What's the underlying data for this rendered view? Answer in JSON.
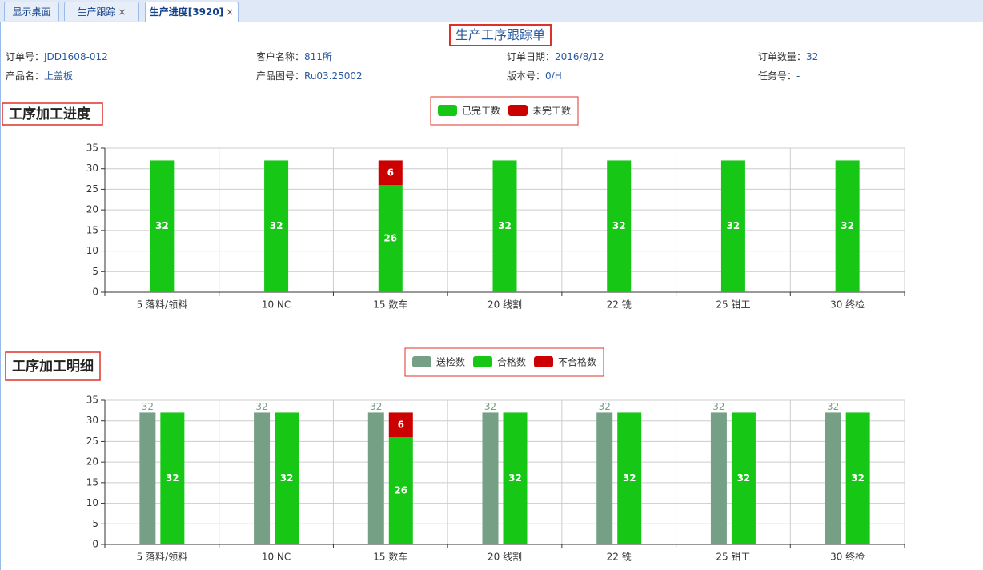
{
  "tabs": [
    {
      "label": "显示桌面"
    },
    {
      "label": "生产跟踪",
      "close": "×"
    },
    {
      "label": "生产进度[3920]",
      "close": "×"
    }
  ],
  "title": "生产工序跟踪单",
  "fields": [
    {
      "label": "订单号：",
      "value": "JDD1608-012"
    },
    {
      "label": "客户名称：",
      "value": "811所"
    },
    {
      "label": "订单日期：",
      "value": "2016/8/12"
    },
    {
      "label": "订单数量：",
      "value": "32"
    },
    {
      "label": "产品名：",
      "value": "上盖板"
    },
    {
      "label": "产品图号：",
      "value": "Ru03.25002"
    },
    {
      "label": "版本号：",
      "value": "0/H"
    },
    {
      "label": "任务号：",
      "value": "-"
    }
  ],
  "chart_data": [
    {
      "type": "bar",
      "title": "工序加工进度",
      "categories": [
        "5 落料/领料",
        "10 NC",
        "15 数车",
        "20 线割",
        "22 铣",
        "25 钳工",
        "30 终检"
      ],
      "series": [
        {
          "name": "已完工数",
          "color": "#16c716",
          "stack": "a",
          "values": [
            32,
            32,
            26,
            32,
            32,
            32,
            32
          ]
        },
        {
          "name": "未完工数",
          "color": "#cc0000",
          "stack": "a",
          "values": [
            0,
            0,
            6,
            0,
            0,
            0,
            0
          ]
        }
      ],
      "ylim": [
        0,
        35
      ],
      "yticks": [
        0,
        5,
        10,
        15,
        20,
        25,
        30,
        35
      ],
      "grid": true
    },
    {
      "type": "bar",
      "title": "工序加工明细",
      "categories": [
        "5 落料/领料",
        "10 NC",
        "15 数车",
        "20 线割",
        "22 铣",
        "25 钳工",
        "30 终检"
      ],
      "series": [
        {
          "name": "送检数",
          "color": "#76a085",
          "stack": "a",
          "label_position": "top",
          "values": [
            32,
            32,
            32,
            32,
            32,
            32,
            32
          ]
        },
        {
          "name": "合格数",
          "color": "#16c716",
          "stack": "b",
          "values": [
            32,
            32,
            26,
            32,
            32,
            32,
            32
          ]
        },
        {
          "name": "不合格数",
          "color": "#cc0000",
          "stack": "b",
          "values": [
            0,
            0,
            6,
            0,
            0,
            0,
            0
          ]
        }
      ],
      "ylim": [
        0,
        35
      ],
      "yticks": [
        0,
        5,
        10,
        15,
        20,
        25,
        30,
        35
      ],
      "grid": true
    }
  ]
}
